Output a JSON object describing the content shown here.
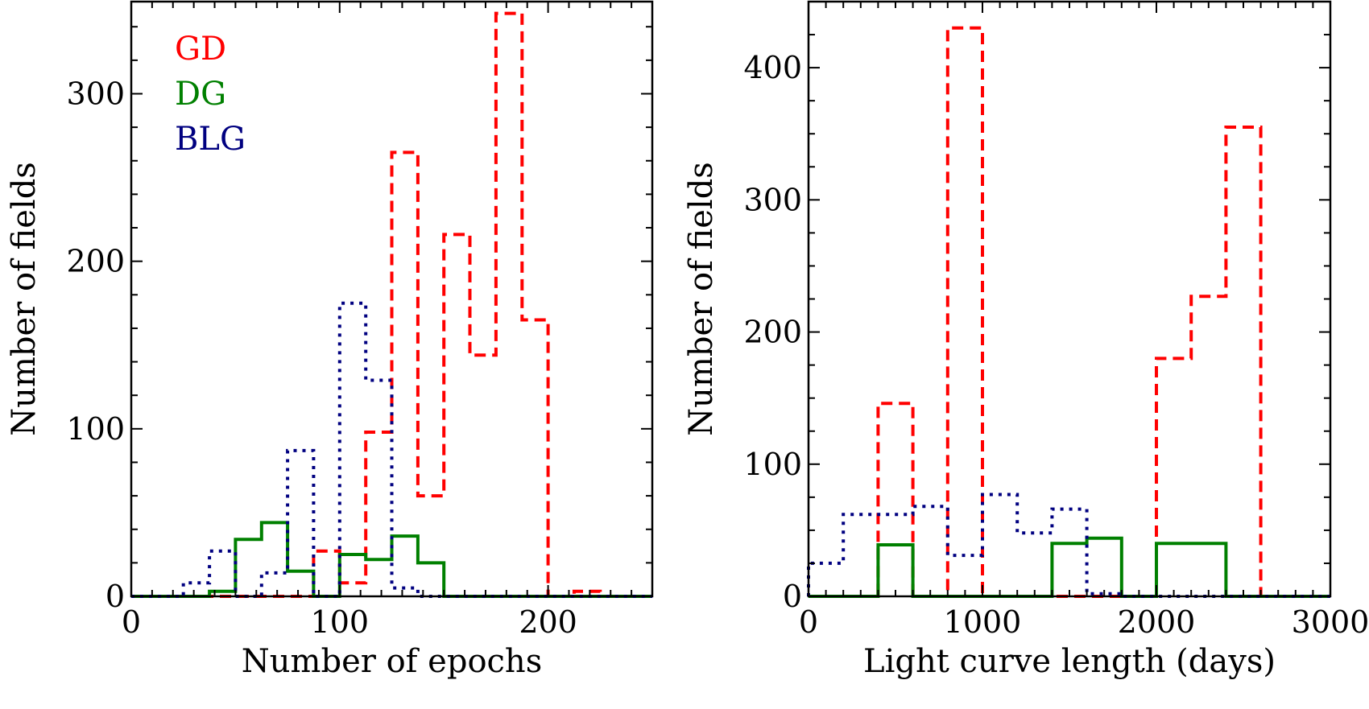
{
  "chart_data": [
    {
      "type": "step-histogram",
      "xlabel": "Number of epochs",
      "ylabel": "Number of fields",
      "xlim": [
        0,
        250
      ],
      "ylim": [
        0,
        355
      ],
      "xticks": [
        0,
        100,
        200
      ],
      "yticks": [
        0,
        100,
        200,
        300
      ],
      "xminor_step": 10,
      "yminor_step": 20,
      "legend": {
        "position": "top-left",
        "entries": [
          {
            "label": "GD",
            "color": "#ff0000"
          },
          {
            "label": "DG",
            "color": "#008000"
          },
          {
            "label": "BLG",
            "color": "#000080"
          }
        ]
      },
      "series": [
        {
          "name": "GD",
          "color": "#ff0000",
          "style": "dashed",
          "edges": [
            0,
            12.5,
            25,
            37.5,
            50,
            62.5,
            75,
            87.5,
            100,
            112.5,
            125,
            137.5,
            150,
            162.5,
            175,
            187.5,
            200,
            212.5,
            225,
            237.5,
            250
          ],
          "counts": [
            0,
            0,
            0,
            0,
            0,
            0,
            0,
            27,
            8,
            98,
            265,
            60,
            216,
            144,
            348,
            165,
            0,
            3,
            0,
            0
          ]
        },
        {
          "name": "DG",
          "color": "#008000",
          "style": "solid",
          "edges": [
            0,
            12.5,
            25,
            37.5,
            50,
            62.5,
            75,
            87.5,
            100,
            112.5,
            125,
            137.5,
            150,
            162.5,
            175,
            187.5,
            200,
            212.5,
            225,
            237.5,
            250
          ],
          "counts": [
            0,
            0,
            0,
            3,
            34,
            44,
            15,
            0,
            25,
            22,
            36,
            20,
            0,
            0,
            0,
            0,
            0,
            0,
            0,
            0
          ]
        },
        {
          "name": "BLG",
          "color": "#000080",
          "style": "dotted",
          "edges": [
            0,
            12.5,
            25,
            37.5,
            50,
            62.5,
            75,
            87.5,
            100,
            112.5,
            125,
            137.5,
            150,
            162.5,
            175,
            187.5,
            200,
            212.5,
            225,
            237.5,
            250
          ],
          "counts": [
            0,
            0,
            8,
            27,
            0,
            14,
            87,
            0,
            175,
            129,
            5,
            0,
            0,
            0,
            0,
            0,
            0,
            0,
            0,
            0
          ]
        }
      ]
    },
    {
      "type": "step-histogram",
      "xlabel": "Light curve length (days)",
      "ylabel": "Number of fields",
      "xlim": [
        0,
        3000
      ],
      "ylim": [
        0,
        450
      ],
      "xticks": [
        0,
        1000,
        2000,
        3000
      ],
      "yticks": [
        0,
        100,
        200,
        300,
        400
      ],
      "xminor_step": 100,
      "yminor_step": 25,
      "series": [
        {
          "name": "GD",
          "color": "#ff0000",
          "style": "dashed",
          "edges": [
            0,
            200,
            400,
            600,
            800,
            1000,
            1200,
            1400,
            1600,
            1800,
            2000,
            2200,
            2400,
            2600,
            2800,
            3000
          ],
          "counts": [
            0,
            0,
            146,
            0,
            430,
            0,
            0,
            0,
            0,
            0,
            180,
            227,
            355,
            0,
            0
          ]
        },
        {
          "name": "DG",
          "color": "#008000",
          "style": "solid",
          "edges": [
            0,
            200,
            400,
            600,
            800,
            1000,
            1200,
            1400,
            1600,
            1800,
            2000,
            2200,
            2400,
            2600,
            2800,
            3000
          ],
          "counts": [
            0,
            0,
            39,
            0,
            0,
            0,
            0,
            40,
            44,
            0,
            40,
            40,
            0,
            0,
            0
          ]
        },
        {
          "name": "BLG",
          "color": "#000080",
          "style": "dotted",
          "edges": [
            0,
            200,
            400,
            600,
            800,
            1000,
            1200,
            1400,
            1600,
            1800,
            2000,
            2200,
            2400,
            2600,
            2800,
            3000
          ],
          "counts": [
            25,
            62,
            62,
            68,
            31,
            77,
            48,
            66,
            2,
            0,
            0,
            0,
            0,
            0,
            0
          ]
        }
      ]
    }
  ]
}
